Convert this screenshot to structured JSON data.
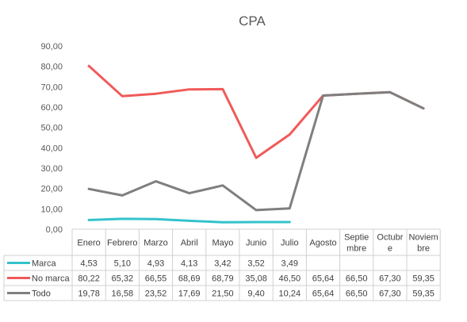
{
  "chart_data": {
    "type": "line",
    "title": "CPA",
    "categories": [
      "Enero",
      "Febrero",
      "Marzo",
      "Abril",
      "Mayo",
      "Junio",
      "Julio",
      "Agosto",
      "Septiembre",
      "Octubre",
      "Noviembre"
    ],
    "category_labels": [
      [
        "Enero"
      ],
      [
        "Febrero"
      ],
      [
        "Marzo"
      ],
      [
        "Abril"
      ],
      [
        "Mayo"
      ],
      [
        "Junio"
      ],
      [
        "Julio"
      ],
      [
        "Agosto"
      ],
      [
        "Septie",
        "mbre"
      ],
      [
        "Octubr",
        "e"
      ],
      [
        "Noviem",
        "bre"
      ]
    ],
    "y_ticks": [
      "0,00",
      "10,00",
      "20,00",
      "30,00",
      "40,00",
      "50,00",
      "60,00",
      "70,00",
      "80,00",
      "90,00"
    ],
    "ylim": [
      0,
      90
    ],
    "grid": false,
    "legend": "data-table",
    "series": [
      {
        "name": "Marca",
        "color": "#33c3cc",
        "values": [
          4.53,
          5.1,
          4.93,
          4.13,
          3.42,
          3.52,
          3.49,
          null,
          null,
          null,
          null
        ],
        "labels": [
          "4,53",
          "5,10",
          "4,93",
          "4,13",
          "3,42",
          "3,52",
          "3,49",
          "",
          "",
          "",
          ""
        ]
      },
      {
        "name": "No marca",
        "color": "#f05a5a",
        "values": [
          80.22,
          65.32,
          66.55,
          68.69,
          68.79,
          35.08,
          46.5,
          65.64,
          66.5,
          67.3,
          59.35
        ],
        "labels": [
          "80,22",
          "65,32",
          "66,55",
          "68,69",
          "68,79",
          "35,08",
          "46,50",
          "65,64",
          "66,50",
          "67,30",
          "59,35"
        ]
      },
      {
        "name": "Todo",
        "color": "#7f7f7f",
        "values": [
          19.78,
          16.58,
          23.52,
          17.69,
          21.5,
          9.4,
          10.24,
          65.64,
          66.5,
          67.3,
          59.35
        ],
        "labels": [
          "19,78",
          "16,58",
          "23,52",
          "17,69",
          "21,50",
          "9,40",
          "10,24",
          "65,64",
          "66,50",
          "67,30",
          "59,35"
        ]
      }
    ]
  }
}
